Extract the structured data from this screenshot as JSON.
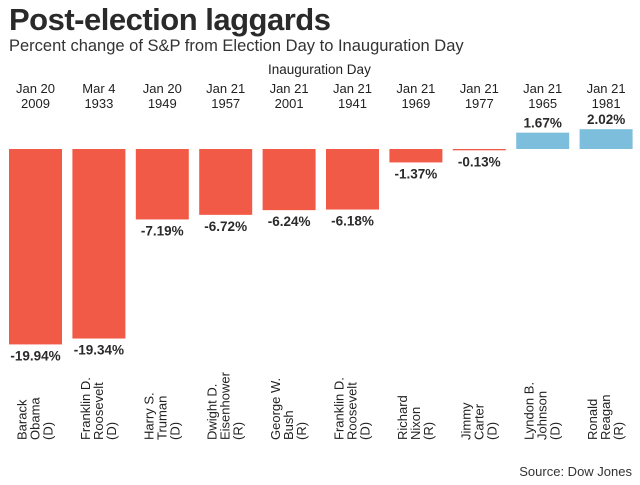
{
  "title": "Post-election laggards",
  "subtitle": "Percent change of S&P from Election Day to Inauguration Day",
  "source": "Source: Dow Jones",
  "colors": {
    "negative": "#f25a48",
    "positive": "#7ebedd"
  },
  "chart_data": {
    "type": "bar",
    "title": "Post-election laggards",
    "subtitle": "Percent change of S&P from Election Day to Inauguration Day",
    "xlabel": "Inauguration Day",
    "ylabel": "",
    "ylim": [
      -20,
      2.5
    ],
    "categories": [
      {
        "date": [
          "Jan 20",
          "2009"
        ],
        "name": [
          "Barack",
          "Obama",
          "(D)"
        ],
        "value": -19.94,
        "label": "-19.94%"
      },
      {
        "date": [
          "Mar 4",
          "1933"
        ],
        "name": [
          "Franklin D.",
          "Roosevelt",
          "(D)"
        ],
        "value": -19.34,
        "label": "-19.34%"
      },
      {
        "date": [
          "Jan 20",
          "1949"
        ],
        "name": [
          "Harry S.",
          "Truman",
          "(D)"
        ],
        "value": -7.19,
        "label": "-7.19%"
      },
      {
        "date": [
          "Jan 21",
          "1957"
        ],
        "name": [
          "Dwight D.",
          "Eisenhower",
          "(R)"
        ],
        "value": -6.72,
        "label": "-6.72%"
      },
      {
        "date": [
          "Jan 21",
          "2001"
        ],
        "name": [
          "George W.",
          "Bush",
          "(R)"
        ],
        "value": -6.24,
        "label": "-6.24%"
      },
      {
        "date": [
          "Jan 21",
          "1941"
        ],
        "name": [
          "Franklin D.",
          "Roosevelt",
          "(D)"
        ],
        "value": -6.18,
        "label": "-6.18%"
      },
      {
        "date": [
          "Jan 21",
          "1969"
        ],
        "name": [
          "Richard",
          "Nixon",
          "(R)"
        ],
        "value": -1.37,
        "label": "-1.37%"
      },
      {
        "date": [
          "Jan 21",
          "1977"
        ],
        "name": [
          "Jimmy",
          "Carter",
          "(D)"
        ],
        "value": -0.13,
        "label": "-0.13%"
      },
      {
        "date": [
          "Jan 21",
          "1965"
        ],
        "name": [
          "Lyndon B.",
          "Johnson",
          "(D)"
        ],
        "value": 1.67,
        "label": "1.67%"
      },
      {
        "date": [
          "Jan 21",
          "1981"
        ],
        "name": [
          "Ronald",
          "Reagan",
          "(R)"
        ],
        "value": 2.02,
        "label": "2.02%"
      }
    ]
  }
}
